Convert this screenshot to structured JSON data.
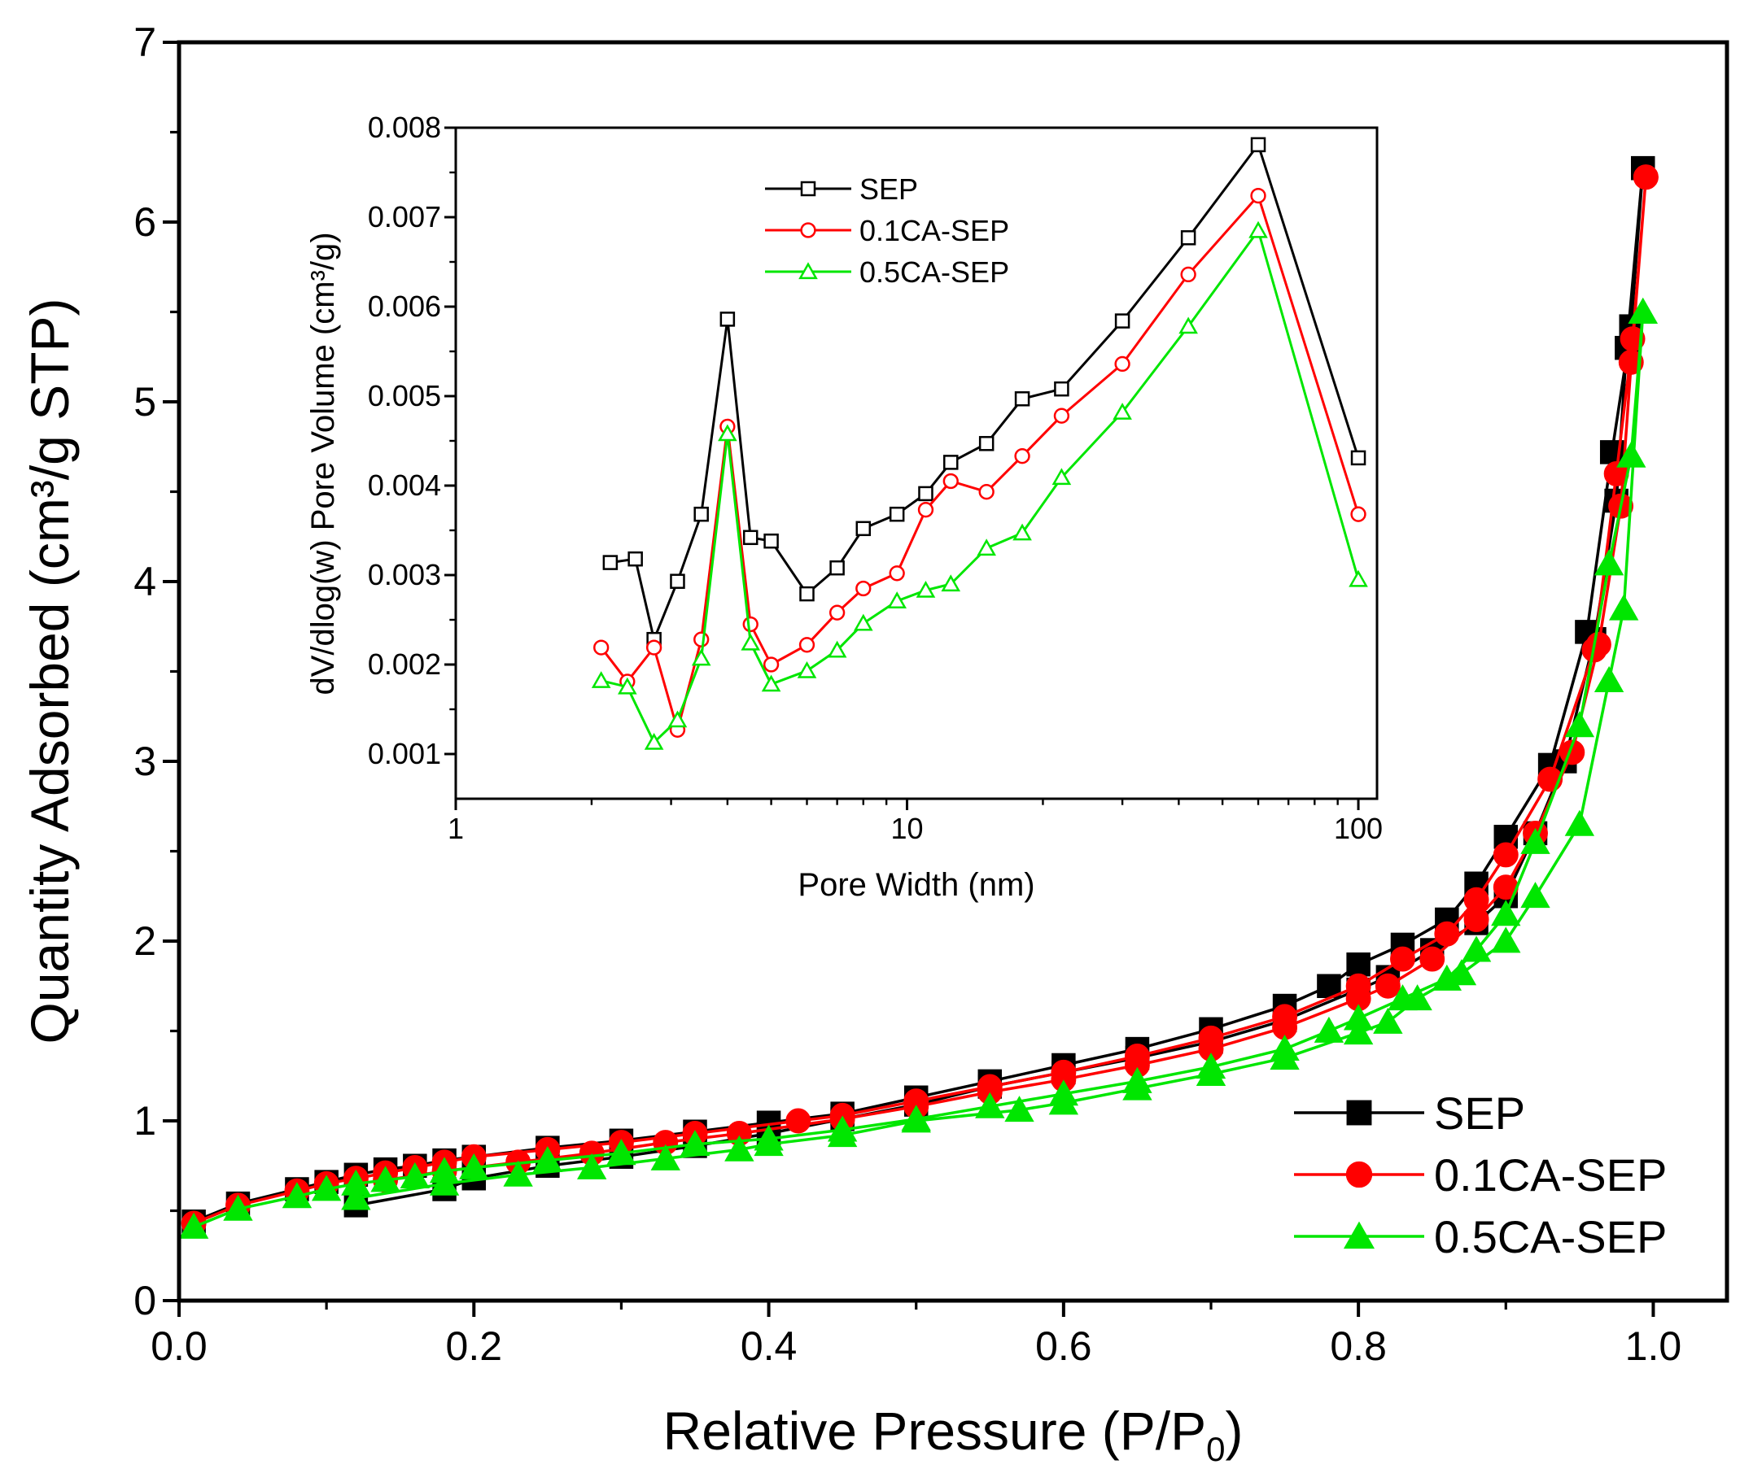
{
  "chart_data": [
    {
      "id": "main",
      "type": "line",
      "title": "",
      "xlabel": "Relative Pressure (P/P",
      "xlabel_sub": "0",
      "xlabel_end": ")",
      "ylabel": "Quantity Adsorbed (cm³/g STP)",
      "xlim": [
        0.0,
        1.05
      ],
      "ylim": [
        0,
        7
      ],
      "xticks": [
        0.0,
        0.2,
        0.4,
        0.6,
        0.8,
        1.0
      ],
      "xtick_labels": [
        "0.0",
        "0.2",
        "0.4",
        "0.6",
        "0.8",
        "1.0"
      ],
      "yticks": [
        0,
        1,
        2,
        3,
        4,
        5,
        6,
        7
      ],
      "ytick_labels": [
        "0",
        "1",
        "2",
        "3",
        "4",
        "5",
        "6",
        "7"
      ],
      "legend_position": "bottom-right",
      "series": [
        {
          "name": "SEP",
          "color": "#000000",
          "marker": "square",
          "points": [
            [
              0.01,
              0.44
            ],
            [
              0.04,
              0.54
            ],
            [
              0.08,
              0.62
            ],
            [
              0.1,
              0.66
            ],
            [
              0.12,
              0.7
            ],
            [
              0.14,
              0.73
            ],
            [
              0.16,
              0.75
            ],
            [
              0.18,
              0.78
            ],
            [
              0.2,
              0.8
            ],
            [
              0.25,
              0.85
            ],
            [
              0.3,
              0.89
            ],
            [
              0.35,
              0.94
            ],
            [
              0.4,
              0.99
            ],
            [
              0.45,
              1.04
            ],
            [
              0.5,
              1.13
            ],
            [
              0.55,
              1.22
            ],
            [
              0.6,
              1.31
            ],
            [
              0.65,
              1.4
            ],
            [
              0.7,
              1.51
            ],
            [
              0.75,
              1.64
            ],
            [
              0.78,
              1.75
            ],
            [
              0.8,
              1.87
            ],
            [
              0.83,
              1.98
            ],
            [
              0.86,
              2.12
            ],
            [
              0.88,
              2.32
            ],
            [
              0.9,
              2.58
            ],
            [
              0.93,
              2.98
            ],
            [
              0.955,
              3.72
            ],
            [
              0.972,
              4.72
            ],
            [
              0.985,
              5.42
            ],
            [
              0.993,
              6.3
            ],
            [
              0.993,
              6.3
            ],
            [
              0.982,
              5.3
            ],
            [
              0.975,
              4.45
            ],
            [
              0.96,
              3.68
            ],
            [
              0.94,
              3.0
            ],
            [
              0.92,
              2.6
            ],
            [
              0.9,
              2.25
            ],
            [
              0.88,
              2.1
            ],
            [
              0.85,
              1.95
            ],
            [
              0.82,
              1.8
            ],
            [
              0.8,
              1.73
            ],
            [
              0.75,
              1.56
            ],
            [
              0.7,
              1.44
            ],
            [
              0.65,
              1.35
            ],
            [
              0.6,
              1.27
            ],
            [
              0.55,
              1.19
            ],
            [
              0.5,
              1.09
            ],
            [
              0.45,
              1.01
            ],
            [
              0.4,
              0.93
            ],
            [
              0.35,
              0.86
            ],
            [
              0.3,
              0.8
            ],
            [
              0.25,
              0.75
            ],
            [
              0.2,
              0.68
            ],
            [
              0.18,
              0.62
            ],
            [
              0.12,
              0.53
            ]
          ]
        },
        {
          "name": "0.1CA-SEP",
          "color": "#ff0000",
          "marker": "circle",
          "points": [
            [
              0.01,
              0.43
            ],
            [
              0.04,
              0.53
            ],
            [
              0.08,
              0.61
            ],
            [
              0.1,
              0.65
            ],
            [
              0.12,
              0.68
            ],
            [
              0.14,
              0.71
            ],
            [
              0.16,
              0.74
            ],
            [
              0.18,
              0.77
            ],
            [
              0.2,
              0.8
            ],
            [
              0.25,
              0.84
            ],
            [
              0.3,
              0.88
            ],
            [
              0.35,
              0.93
            ],
            [
              0.42,
              1.0
            ],
            [
              0.45,
              1.03
            ],
            [
              0.5,
              1.11
            ],
            [
              0.55,
              1.19
            ],
            [
              0.6,
              1.27
            ],
            [
              0.65,
              1.36
            ],
            [
              0.7,
              1.46
            ],
            [
              0.75,
              1.58
            ],
            [
              0.8,
              1.75
            ],
            [
              0.83,
              1.9
            ],
            [
              0.86,
              2.04
            ],
            [
              0.88,
              2.23
            ],
            [
              0.9,
              2.48
            ],
            [
              0.93,
              2.9
            ],
            [
              0.96,
              3.62
            ],
            [
              0.975,
              4.6
            ],
            [
              0.986,
              5.35
            ],
            [
              0.995,
              6.25
            ],
            [
              0.995,
              6.25
            ],
            [
              0.985,
              5.22
            ],
            [
              0.978,
              4.42
            ],
            [
              0.963,
              3.65
            ],
            [
              0.945,
              3.05
            ],
            [
              0.92,
              2.6
            ],
            [
              0.9,
              2.3
            ],
            [
              0.88,
              2.12
            ],
            [
              0.85,
              1.9
            ],
            [
              0.82,
              1.75
            ],
            [
              0.8,
              1.68
            ],
            [
              0.75,
              1.52
            ],
            [
              0.7,
              1.4
            ],
            [
              0.65,
              1.31
            ],
            [
              0.6,
              1.23
            ],
            [
              0.55,
              1.16
            ],
            [
              0.5,
              1.08
            ],
            [
              0.45,
              1.01
            ],
            [
              0.38,
              0.93
            ],
            [
              0.33,
              0.88
            ],
            [
              0.28,
              0.82
            ],
            [
              0.23,
              0.77
            ],
            [
              0.18,
              0.72
            ],
            [
              0.14,
              0.67
            ]
          ]
        },
        {
          "name": "0.5CA-SEP",
          "color": "#00e600",
          "marker": "triangle",
          "points": [
            [
              0.01,
              0.41
            ],
            [
              0.04,
              0.51
            ],
            [
              0.08,
              0.58
            ],
            [
              0.1,
              0.62
            ],
            [
              0.12,
              0.65
            ],
            [
              0.14,
              0.67
            ],
            [
              0.16,
              0.69
            ],
            [
              0.18,
              0.72
            ],
            [
              0.2,
              0.74
            ],
            [
              0.25,
              0.78
            ],
            [
              0.3,
              0.82
            ],
            [
              0.35,
              0.87
            ],
            [
              0.4,
              0.9
            ],
            [
              0.45,
              0.95
            ],
            [
              0.5,
              1.01
            ],
            [
              0.55,
              1.08
            ],
            [
              0.6,
              1.15
            ],
            [
              0.65,
              1.22
            ],
            [
              0.7,
              1.3
            ],
            [
              0.75,
              1.4
            ],
            [
              0.78,
              1.5
            ],
            [
              0.8,
              1.57
            ],
            [
              0.83,
              1.68
            ],
            [
              0.86,
              1.79
            ],
            [
              0.88,
              1.95
            ],
            [
              0.9,
              2.15
            ],
            [
              0.92,
              2.55
            ],
            [
              0.95,
              3.2
            ],
            [
              0.97,
              4.1
            ],
            [
              0.985,
              4.7
            ],
            [
              0.993,
              5.5
            ],
            [
              0.993,
              5.5
            ],
            [
              0.98,
              3.85
            ],
            [
              0.97,
              3.45
            ],
            [
              0.95,
              2.65
            ],
            [
              0.92,
              2.25
            ],
            [
              0.9,
              2.0
            ],
            [
              0.87,
              1.82
            ],
            [
              0.84,
              1.68
            ],
            [
              0.82,
              1.55
            ],
            [
              0.8,
              1.49
            ],
            [
              0.75,
              1.35
            ],
            [
              0.7,
              1.26
            ],
            [
              0.65,
              1.18
            ],
            [
              0.6,
              1.1
            ],
            [
              0.57,
              1.06
            ],
            [
              0.5,
              1.0
            ],
            [
              0.45,
              0.92
            ],
            [
              0.4,
              0.87
            ],
            [
              0.38,
              0.84
            ],
            [
              0.33,
              0.79
            ],
            [
              0.28,
              0.74
            ],
            [
              0.23,
              0.7
            ],
            [
              0.18,
              0.65
            ],
            [
              0.12,
              0.57
            ]
          ]
        }
      ]
    },
    {
      "id": "inset",
      "type": "line",
      "title": "",
      "xlabel": "Pore Width (nm)",
      "ylabel": "dV/dlog(w) Pore Volume (cm³/g)",
      "xscale": "log",
      "xlim": [
        1,
        110
      ],
      "ylim": [
        0.0005,
        0.008
      ],
      "xticks": [
        1,
        10,
        100
      ],
      "xtick_labels": [
        "1",
        "10",
        "100"
      ],
      "yticks": [
        0.001,
        0.002,
        0.003,
        0.004,
        0.005,
        0.006,
        0.007,
        0.008
      ],
      "ytick_labels": [
        "0.001",
        "0.002",
        "0.003",
        "0.004",
        "0.005",
        "0.006",
        "0.007",
        "0.008"
      ],
      "legend_position": "top-left",
      "series": [
        {
          "name": "SEP",
          "color": "#000000",
          "marker": "open-square",
          "points": [
            [
              2.2,
              0.00314
            ],
            [
              2.5,
              0.00318
            ],
            [
              2.75,
              0.00228
            ],
            [
              3.1,
              0.00293
            ],
            [
              3.5,
              0.00368
            ],
            [
              4.0,
              0.00586
            ],
            [
              4.5,
              0.00342
            ],
            [
              5.0,
              0.00338
            ],
            [
              6.0,
              0.00279
            ],
            [
              7.0,
              0.00308
            ],
            [
              8.0,
              0.00352
            ],
            [
              9.5,
              0.00368
            ],
            [
              11,
              0.00391
            ],
            [
              12.5,
              0.00426
            ],
            [
              15,
              0.00447
            ],
            [
              18,
              0.00497
            ],
            [
              22,
              0.00508
            ],
            [
              30,
              0.00584
            ],
            [
              42,
              0.00677
            ],
            [
              60,
              0.00781
            ],
            [
              100,
              0.00431
            ]
          ]
        },
        {
          "name": "0.1CA-SEP",
          "color": "#ff0000",
          "marker": "open-circle",
          "points": [
            [
              2.1,
              0.00219
            ],
            [
              2.4,
              0.00181
            ],
            [
              2.75,
              0.00219
            ],
            [
              3.1,
              0.00127
            ],
            [
              3.5,
              0.00228
            ],
            [
              4.0,
              0.00466
            ],
            [
              4.5,
              0.00245
            ],
            [
              5.0,
              0.002
            ],
            [
              6.0,
              0.00222
            ],
            [
              7.0,
              0.00258
            ],
            [
              8.0,
              0.00285
            ],
            [
              9.5,
              0.00302
            ],
            [
              11,
              0.00373
            ],
            [
              12.5,
              0.00405
            ],
            [
              15,
              0.00393
            ],
            [
              18,
              0.00433
            ],
            [
              22,
              0.00478
            ],
            [
              30,
              0.00536
            ],
            [
              42,
              0.00636
            ],
            [
              60,
              0.00724
            ],
            [
              100,
              0.00368
            ]
          ]
        },
        {
          "name": "0.5CA-SEP",
          "color": "#00e600",
          "marker": "open-triangle",
          "points": [
            [
              2.1,
              0.00182
            ],
            [
              2.4,
              0.00175
            ],
            [
              2.75,
              0.00113
            ],
            [
              3.1,
              0.00138
            ],
            [
              3.5,
              0.00207
            ],
            [
              4.0,
              0.00458
            ],
            [
              4.5,
              0.00224
            ],
            [
              5.0,
              0.00178
            ],
            [
              6.0,
              0.00193
            ],
            [
              7.0,
              0.00216
            ],
            [
              8.0,
              0.00246
            ],
            [
              9.5,
              0.00271
            ],
            [
              11,
              0.00283
            ],
            [
              12.5,
              0.0029
            ],
            [
              15,
              0.0033
            ],
            [
              18,
              0.00347
            ],
            [
              22,
              0.00409
            ],
            [
              30,
              0.00482
            ],
            [
              42,
              0.00578
            ],
            [
              60,
              0.00685
            ],
            [
              100,
              0.00295
            ]
          ]
        }
      ]
    }
  ]
}
